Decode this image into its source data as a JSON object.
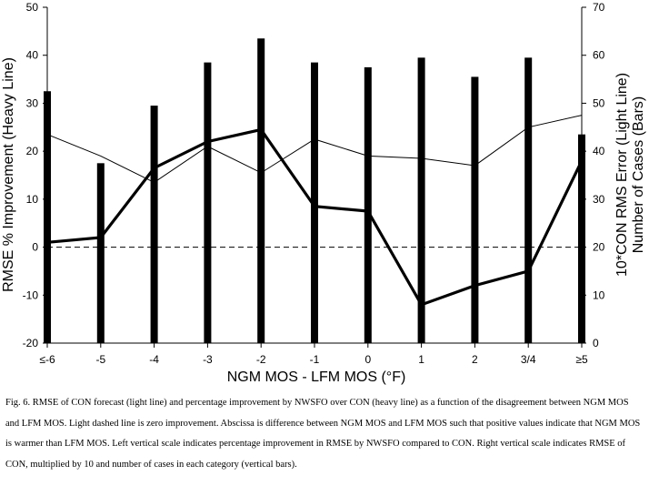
{
  "chart_data": {
    "type": "bar+line",
    "categories": [
      "≤-6",
      "-5",
      "-4",
      "-3",
      "-2",
      "-1",
      "0",
      "1",
      "2",
      "3/4",
      "≥5"
    ],
    "bars": {
      "axis": "right",
      "values": [
        52.5,
        37.5,
        49.5,
        58.5,
        63.5,
        58.5,
        57.5,
        59.5,
        55.5,
        59.5,
        43.5
      ]
    },
    "heavy_line": {
      "axis": "left",
      "values": [
        1,
        2,
        16.5,
        22,
        24.5,
        8.5,
        7.5,
        -12,
        -8,
        -5,
        18
      ]
    },
    "light_line": {
      "axis": "right",
      "values": [
        43.5,
        39,
        33.5,
        41,
        35.5,
        42.5,
        39,
        38.5,
        37,
        45,
        47.5
      ]
    },
    "zero_reference": {
      "axis": "left",
      "value": 0,
      "style": "dashed"
    },
    "left_axis": {
      "label": "RMSE % Improvement (Heavy Line)",
      "range": [
        -20,
        50
      ],
      "ticks": [
        "-20",
        "-10",
        "0",
        "10",
        "20",
        "30",
        "40",
        "50"
      ]
    },
    "right_axis": {
      "label_line1": "10*CON RMS Error (Light Line)",
      "label_line2": "Number of Cases (Bars)",
      "range": [
        0,
        70
      ],
      "ticks": [
        "0",
        "10",
        "20",
        "30",
        "40",
        "50",
        "60",
        "70"
      ]
    },
    "xlabel": "NGM MOS - LFM MOS (°F)",
    "grid": false,
    "legend": "none"
  },
  "caption": "Fig. 6.  RMSE of CON forecast (light line) and percentage improvement by NWSFO over CON (heavy line) as a function of the disagreement between NGM MOS and LFM MOS.  Light dashed line is zero improvement.  Abscissa is difference between NGM MOS and LFM MOS such that positive values indicate that NGM MOS is warmer than LFM MOS.  Left vertical scale indicates percentage improvement in RMSE by NWSFO compared to CON.  Right vertical scale indicates RMSE of CON, multiplied by 10 and number of cases in each category (vertical bars).",
  "colors": {
    "ink": "#000000",
    "background": "#ffffff"
  }
}
